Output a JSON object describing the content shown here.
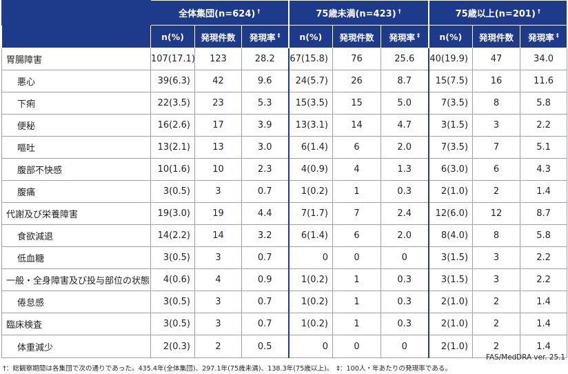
{
  "chart_data": {
    "type": "table",
    "group_headers": [
      {
        "label": "全体集団(n=624)",
        "mark": "†"
      },
      {
        "label": "75歳未満(n=423)",
        "mark": "†"
      },
      {
        "label": "75歳以上(n=201)",
        "mark": "†"
      }
    ],
    "column_headers": [
      {
        "label": "n(%)",
        "mark": ""
      },
      {
        "label": "発現件数",
        "mark": ""
      },
      {
        "label": "発現率",
        "mark": "‡"
      }
    ],
    "rows": [
      {
        "name": "胃腸障害",
        "sub": false,
        "values": [
          "107(17.1)",
          "123",
          "28.2",
          "67(15.8)",
          "76",
          "25.6",
          "40(19.9)",
          "47",
          "34.0"
        ]
      },
      {
        "name": "悪心",
        "sub": true,
        "values": [
          "39(6.3)",
          "42",
          "9.6",
          "24(5.7)",
          "26",
          "8.7",
          "15(7.5)",
          "16",
          "11.6"
        ]
      },
      {
        "name": "下痢",
        "sub": true,
        "values": [
          "22(3.5)",
          "23",
          "5.3",
          "15(3.5)",
          "15",
          "5.0",
          "7(3.5)",
          "8",
          "5.8"
        ]
      },
      {
        "name": "便秘",
        "sub": true,
        "values": [
          "16(2.6)",
          "17",
          "3.9",
          "13(3.1)",
          "14",
          "4.7",
          "3(1.5)",
          "3",
          "2.2"
        ]
      },
      {
        "name": "嘔吐",
        "sub": true,
        "values": [
          "13(2.1)",
          "13",
          "3.0",
          "6(1.4)",
          "6",
          "2.0",
          "7(3.5)",
          "7",
          "5.1"
        ]
      },
      {
        "name": "腹部不快感",
        "sub": true,
        "values": [
          "10(1.6)",
          "10",
          "2.3",
          "4(0.9)",
          "4",
          "1.3",
          "6(3.0)",
          "6",
          "4.3"
        ]
      },
      {
        "name": "腹痛",
        "sub": true,
        "values": [
          "3(0.5)",
          "3",
          "0.7",
          "1(0.2)",
          "1",
          "0.3",
          "2(1.0)",
          "2",
          "1.4"
        ]
      },
      {
        "name": "代謝及び栄養障害",
        "sub": false,
        "values": [
          "19(3.0)",
          "19",
          "4.4",
          "7(1.7)",
          "7",
          "2.4",
          "12(6.0)",
          "12",
          "8.7"
        ]
      },
      {
        "name": "食欲減退",
        "sub": true,
        "values": [
          "14(2.2)",
          "14",
          "3.2",
          "6(1.4)",
          "6",
          "2.0",
          "8(4.0)",
          "8",
          "5.8"
        ]
      },
      {
        "name": "低血糖",
        "sub": true,
        "values": [
          "3(0.5)",
          "3",
          "0.7",
          "0",
          "0",
          "0",
          "3(1.5)",
          "3",
          "2.2"
        ]
      },
      {
        "name": "一般・全身障害及び投与部位の状態",
        "sub": false,
        "values": [
          "4(0.6)",
          "4",
          "0.9",
          "1(0.2)",
          "1",
          "0.3",
          "3(1.5)",
          "3",
          "2.2"
        ]
      },
      {
        "name": "倦怠感",
        "sub": true,
        "values": [
          "3(0.5)",
          "3",
          "0.7",
          "1(0.2)",
          "1",
          "0.3",
          "2(1.0)",
          "2",
          "1.4"
        ]
      },
      {
        "name": "臨床検査",
        "sub": false,
        "values": [
          "3(0.5)",
          "3",
          "0.7",
          "1(0.2)",
          "1",
          "0.3",
          "2(1.0)",
          "2",
          "1.4"
        ]
      },
      {
        "name": "体重減少",
        "sub": true,
        "values": [
          "2(0.3)",
          "2",
          "0.5",
          "0",
          "0",
          "0",
          "2(1.0)",
          "2",
          "1.4"
        ]
      }
    ]
  },
  "footnote": "†：総観察期間は各集団で次の通りであった。435.4年(全体集団)、297.1年(75歳未満)、138.3年(75歳以上)。　‡：100人・年あたりの発現率である。",
  "source": "FAS/MedDRA ver. 25.1",
  "colors": {
    "header_bg": "#1e3a8a",
    "header_text": "#ffffff",
    "grid": "#98a0b4"
  }
}
